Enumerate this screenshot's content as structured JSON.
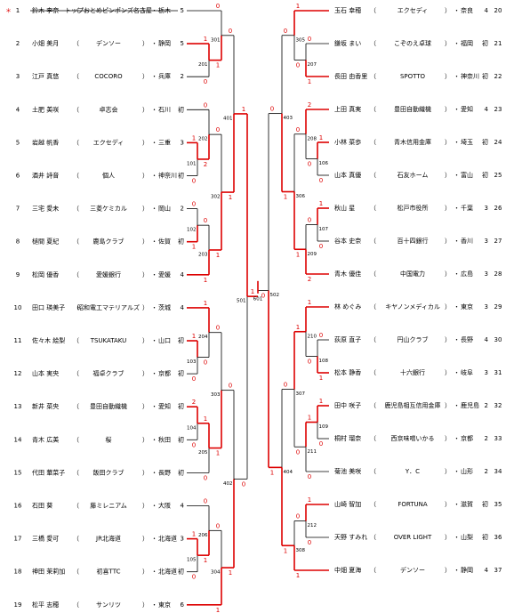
{
  "mark": "＊",
  "open": "（",
  "close": "）",
  "sep": "・",
  "players": [
    {
      "no": "1",
      "name": "鈴木 李奈",
      "team": "トップおとめピンポンズ名古屋",
      "pref": "栃木",
      "seed": "5"
    },
    {
      "no": "2",
      "name": "小畑 美月",
      "team": "デンソー",
      "pref": "静岡",
      "seed": "5"
    },
    {
      "no": "3",
      "name": "江戸 真悠",
      "team": "COCORO",
      "pref": "兵庫",
      "seed": "2"
    },
    {
      "no": "4",
      "name": "土肥 美咲",
      "team": "卓志会",
      "pref": "石川",
      "seed": "初"
    },
    {
      "no": "5",
      "name": "岩越 帆香",
      "team": "エクセディ",
      "pref": "三重",
      "seed": "3"
    },
    {
      "no": "6",
      "name": "酒井 詩音",
      "team": "個人",
      "pref": "神奈川",
      "seed": "初"
    },
    {
      "no": "7",
      "name": "三宅 愛未",
      "team": "三菱ケミカル",
      "pref": "岡山",
      "seed": "2"
    },
    {
      "no": "8",
      "name": "槌間 夏紀",
      "team": "鹿島クラブ",
      "pref": "佐賀",
      "seed": "初"
    },
    {
      "no": "9",
      "name": "松岡 優香",
      "team": "愛媛銀行",
      "pref": "愛媛",
      "seed": "4"
    },
    {
      "no": "10",
      "name": "田口 瑛美子",
      "team": "昭和電工マテリアルズ",
      "pref": "茨城",
      "seed": "4"
    },
    {
      "no": "11",
      "name": "佐々木 絵梨",
      "team": "TSUKATAKU",
      "pref": "山口",
      "seed": "初"
    },
    {
      "no": "12",
      "name": "山本 実央",
      "team": "福卓クラブ",
      "pref": "京都",
      "seed": "初"
    },
    {
      "no": "13",
      "name": "新井 菜央",
      "team": "豊田自動織機",
      "pref": "愛知",
      "seed": "初"
    },
    {
      "no": "14",
      "name": "青木 広美",
      "team": "桜",
      "pref": "秋田",
      "seed": "初"
    },
    {
      "no": "15",
      "name": "代田 華菜子",
      "team": "飯田クラブ",
      "pref": "長野",
      "seed": "初"
    },
    {
      "no": "16",
      "name": "石田 葵",
      "team": "藤ミレニアム",
      "pref": "大阪",
      "seed": "4"
    },
    {
      "no": "17",
      "name": "三橋 愛可",
      "team": "JR北海道",
      "pref": "北海道",
      "seed": "3"
    },
    {
      "no": "18",
      "name": "神田 茉莉加",
      "team": "初喜TTC",
      "pref": "北海道",
      "seed": "初"
    },
    {
      "no": "19",
      "name": "松平 志穂",
      "team": "サンリツ",
      "pref": "東京",
      "seed": "6"
    },
    {
      "no": "20",
      "name": "玉石 幸穂",
      "team": "エクセディ",
      "pref": "奈良",
      "seed": "4"
    },
    {
      "no": "21",
      "name": "鎌坂 まい",
      "team": "こぞのえ卓球",
      "pref": "福岡",
      "seed": "初"
    },
    {
      "no": "22",
      "name": "長田 由香里",
      "team": "SPOTTO",
      "pref": "神奈川",
      "seed": "初"
    },
    {
      "no": "23",
      "name": "上田 真実",
      "team": "豊田自動織機",
      "pref": "愛知",
      "seed": "4"
    },
    {
      "no": "24",
      "name": "小林 菜歩",
      "team": "青木信用金庫",
      "pref": "埼玉",
      "seed": "初"
    },
    {
      "no": "25",
      "name": "山本 真優",
      "team": "石友ホーム",
      "pref": "富山",
      "seed": "初"
    },
    {
      "no": "26",
      "name": "秋山 星",
      "team": "松戸市役所",
      "pref": "千葉",
      "seed": "3"
    },
    {
      "no": "27",
      "name": "谷本 史奈",
      "team": "百十四銀行",
      "pref": "香川",
      "seed": "3"
    },
    {
      "no": "28",
      "name": "青木 優佳",
      "team": "中国電力",
      "pref": "広島",
      "seed": "3"
    },
    {
      "no": "29",
      "name": "林 めぐみ",
      "team": "キヤノンメディカル",
      "pref": "東京",
      "seed": "3"
    },
    {
      "no": "30",
      "name": "荻原 直子",
      "team": "円山クラブ",
      "pref": "長野",
      "seed": "4"
    },
    {
      "no": "31",
      "name": "松本 静香",
      "team": "十六銀行",
      "pref": "岐阜",
      "seed": "3"
    },
    {
      "no": "32",
      "name": "田中 咲子",
      "team": "鹿児島相互信用金庫",
      "pref": "鹿児島",
      "seed": "2"
    },
    {
      "no": "33",
      "name": "桐村 瑠奈",
      "team": "西京味噌いかる",
      "pref": "京都",
      "seed": "2"
    },
    {
      "no": "34",
      "name": "菊池 美咲",
      "team": "Y．C",
      "pref": "山形",
      "seed": "2"
    },
    {
      "no": "35",
      "name": "山崎 智加",
      "team": "FORTUNA",
      "pref": "滋賀",
      "seed": "初"
    },
    {
      "no": "36",
      "name": "天野 すみれ",
      "team": "OVER LIGHT",
      "pref": "山梨",
      "seed": "初"
    },
    {
      "no": "37",
      "name": "中畑 夏海",
      "team": "デンソー",
      "pref": "静岡",
      "seed": "4"
    }
  ],
  "matches": [
    {
      "no": "101",
      "scores": [
        "1",
        "0"
      ]
    },
    {
      "no": "102",
      "scores": [
        "0",
        "1"
      ]
    },
    {
      "no": "103",
      "scores": [
        "1",
        "0"
      ]
    },
    {
      "no": "104",
      "scores": [
        "2",
        "0"
      ]
    },
    {
      "no": "105",
      "scores": [
        "1",
        "0"
      ]
    },
    {
      "no": "201",
      "scores": [
        "1",
        "0"
      ]
    },
    {
      "no": "202",
      "scores": [
        "0",
        "2"
      ]
    },
    {
      "no": "203",
      "scores": [
        "0",
        "1"
      ]
    },
    {
      "no": "204",
      "scores": [
        "1",
        "0"
      ]
    },
    {
      "no": "205",
      "scores": [
        "1",
        "0"
      ]
    },
    {
      "no": "206",
      "scores": [
        "0",
        "1"
      ]
    },
    {
      "no": "301",
      "scores": [
        "0",
        "1"
      ]
    },
    {
      "no": "302",
      "scores": [
        "0",
        "1"
      ]
    },
    {
      "no": "303",
      "scores": [
        "0",
        "1"
      ]
    },
    {
      "no": "304",
      "scores": [
        "0",
        "1"
      ]
    },
    {
      "no": "401",
      "scores": [
        "0",
        "1"
      ]
    },
    {
      "no": "402",
      "scores": [
        "0",
        "1"
      ]
    },
    {
      "no": "501",
      "scores": [
        "1",
        "0"
      ]
    },
    {
      "no": "601",
      "scores": [
        "1",
        "0"
      ]
    },
    {
      "no": "502",
      "scores": [
        "0",
        "1"
      ]
    },
    {
      "no": "403",
      "scores": [
        "0",
        "1"
      ]
    },
    {
      "no": "404",
      "scores": [
        "0",
        "1"
      ]
    },
    {
      "no": "305",
      "scores": [
        "1",
        "0"
      ]
    },
    {
      "no": "306",
      "scores": [
        "0",
        "1"
      ]
    },
    {
      "no": "307",
      "scores": [
        "1",
        "0"
      ]
    },
    {
      "no": "308",
      "scores": [
        "0",
        "1"
      ]
    },
    {
      "no": "207",
      "scores": [
        "0",
        "1"
      ]
    },
    {
      "no": "208",
      "scores": [
        "2",
        "0"
      ]
    },
    {
      "no": "209",
      "scores": [
        "0",
        "2"
      ]
    },
    {
      "no": "210",
      "scores": [
        "1",
        "0"
      ]
    },
    {
      "no": "211",
      "scores": [
        "1",
        "0"
      ]
    },
    {
      "no": "212",
      "scores": [
        "1",
        "0"
      ]
    },
    {
      "no": "106",
      "scores": [
        "1",
        "0"
      ]
    },
    {
      "no": "107",
      "scores": [
        "1",
        "0"
      ]
    },
    {
      "no": "108",
      "scores": [
        "0",
        "1"
      ]
    },
    {
      "no": "109",
      "scores": [
        "1",
        "0"
      ]
    }
  ]
}
